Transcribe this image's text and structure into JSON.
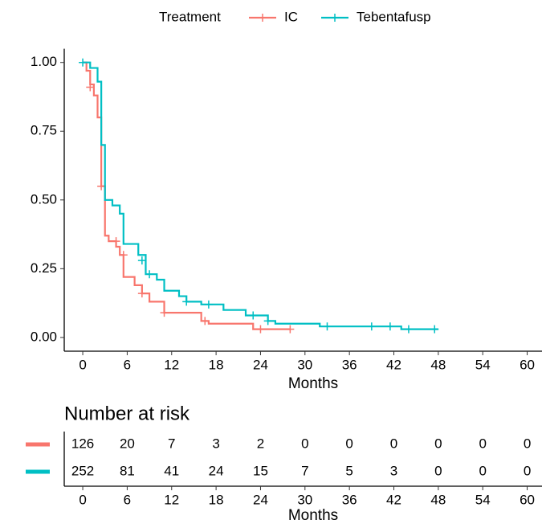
{
  "chart_data": [
    {
      "type": "step",
      "legend_title": "Treatment",
      "xlabel": "Months",
      "xlim": [
        -2.5,
        62
      ],
      "ylim": [
        -0.05,
        1.05
      ],
      "xticks": [
        0,
        6,
        12,
        18,
        24,
        30,
        36,
        42,
        48,
        54,
        60
      ],
      "yticks": [
        {
          "value": 0,
          "label": "0.00"
        },
        {
          "value": 0.25,
          "label": "0.25"
        },
        {
          "value": 0.5,
          "label": "0.50"
        },
        {
          "value": 0.75,
          "label": "0.75"
        },
        {
          "value": 1,
          "label": "1.00"
        }
      ],
      "series": [
        {
          "name": "IC",
          "color": "#F8766D",
          "x": [
            0,
            0.5,
            1,
            1.5,
            2,
            2.5,
            3,
            3.5,
            4.5,
            5,
            5.5,
            7,
            8,
            9,
            11,
            16,
            17,
            23,
            28
          ],
          "values": [
            1,
            0.97,
            0.92,
            0.88,
            0.8,
            0.55,
            0.37,
            0.35,
            0.33,
            0.3,
            0.22,
            0.19,
            0.16,
            0.13,
            0.09,
            0.06,
            0.05,
            0.03,
            0.03
          ],
          "censor_x": [
            1,
            2.5,
            4.5,
            5.5,
            8,
            11,
            16.5,
            24,
            28
          ],
          "censor_y": [
            0.91,
            0.55,
            0.35,
            0.3,
            0.16,
            0.09,
            0.06,
            0.03,
            0.03
          ]
        },
        {
          "name": "Tebentafusp",
          "color": "#00BFC4",
          "x": [
            0,
            1,
            2,
            2.5,
            3,
            4,
            5,
            5.5,
            7.5,
            8.5,
            10,
            11,
            13,
            14,
            16,
            19,
            22,
            25,
            26,
            32,
            41,
            43,
            48
          ],
          "values": [
            1,
            0.98,
            0.93,
            0.7,
            0.5,
            0.48,
            0.45,
            0.34,
            0.3,
            0.23,
            0.21,
            0.17,
            0.15,
            0.13,
            0.12,
            0.1,
            0.08,
            0.06,
            0.05,
            0.04,
            0.04,
            0.03,
            0.03
          ],
          "censor_x": [
            0,
            8,
            9,
            14,
            17,
            23,
            25,
            33,
            39,
            41.5,
            44,
            47.5
          ],
          "censor_y": [
            1,
            0.28,
            0.23,
            0.13,
            0.12,
            0.08,
            0.06,
            0.04,
            0.04,
            0.04,
            0.03,
            0.03
          ]
        }
      ]
    },
    {
      "type": "table",
      "title": "Number at risk",
      "xlabel": "Months",
      "xlim": [
        -2.5,
        62
      ],
      "xticks": [
        0,
        6,
        12,
        18,
        24,
        30,
        36,
        42,
        48,
        54,
        60
      ],
      "series": [
        {
          "color": "#F8766D",
          "values": [
            126,
            20,
            7,
            3,
            2,
            0,
            0,
            0,
            0,
            0,
            0
          ]
        },
        {
          "color": "#00BFC4",
          "values": [
            252,
            81,
            41,
            24,
            15,
            7,
            5,
            3,
            0,
            0,
            0
          ]
        }
      ]
    }
  ]
}
